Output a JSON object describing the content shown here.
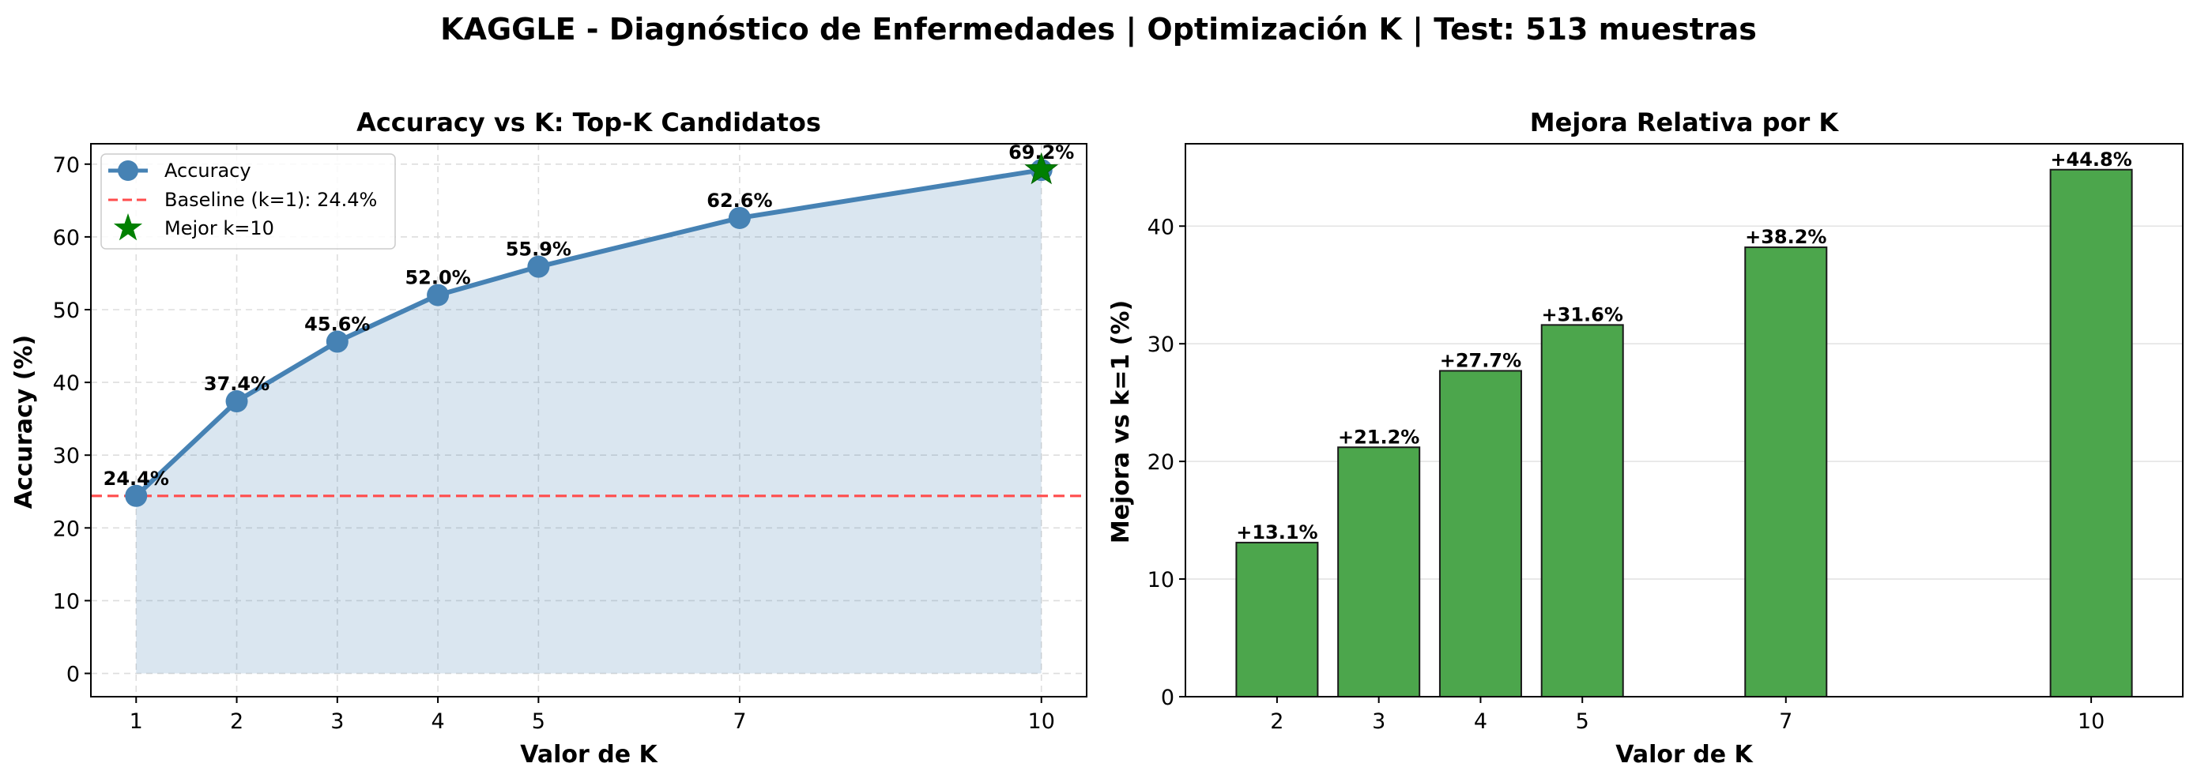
{
  "figure_title": "KAGGLE - Diagnóstico de Enfermedades | Optimización K | Test: 513 muestras",
  "chart_data": [
    {
      "type": "line",
      "title": "Accuracy vs K: Top-K Candidatos",
      "xlabel": "Valor de K",
      "ylabel": "Accuracy (%)",
      "x": [
        1,
        2,
        3,
        4,
        5,
        7,
        10
      ],
      "series": [
        {
          "name": "Accuracy",
          "values": [
            24.4,
            37.4,
            45.6,
            52.0,
            55.9,
            62.6,
            69.2
          ],
          "color": "#4682b4"
        }
      ],
      "data_labels": [
        "24.4%",
        "37.4%",
        "45.6%",
        "52.0%",
        "55.9%",
        "62.6%",
        "69.2%"
      ],
      "baseline": {
        "name": "Baseline (k=1): 24.4%",
        "value": 24.4,
        "color": "#ff4d4d"
      },
      "best": {
        "name": "Mejor k=10",
        "x": 10,
        "y": 69.2,
        "color": "#008000"
      },
      "x_ticks": [
        "1",
        "2",
        "3",
        "4",
        "5",
        "7",
        "10"
      ],
      "y_ticks": [
        "0",
        "10",
        "20",
        "30",
        "40",
        "50",
        "60",
        "70"
      ],
      "xlim": [
        0.55,
        10.45
      ],
      "ylim": [
        -3.2,
        72.8
      ],
      "fill": true,
      "grid": true,
      "legend_position": "top-left"
    },
    {
      "type": "bar",
      "title": "Mejora Relativa por K",
      "xlabel": "Valor de K",
      "ylabel": "Mejora vs k=1 (%)",
      "categories": [
        "2",
        "3",
        "4",
        "5",
        "7",
        "10"
      ],
      "x": [
        2,
        3,
        4,
        5,
        7,
        10
      ],
      "values": [
        13.1,
        21.2,
        27.7,
        31.6,
        38.2,
        44.8
      ],
      "data_labels": [
        "+13.1%",
        "+21.2%",
        "+27.7%",
        "+31.6%",
        "+38.2%",
        "+44.8%"
      ],
      "color": "#4ca64c",
      "y_ticks": [
        "0",
        "10",
        "20",
        "30",
        "40"
      ],
      "xlim": [
        1.1,
        10.9
      ],
      "ylim": [
        0,
        47
      ],
      "grid": true
    }
  ]
}
